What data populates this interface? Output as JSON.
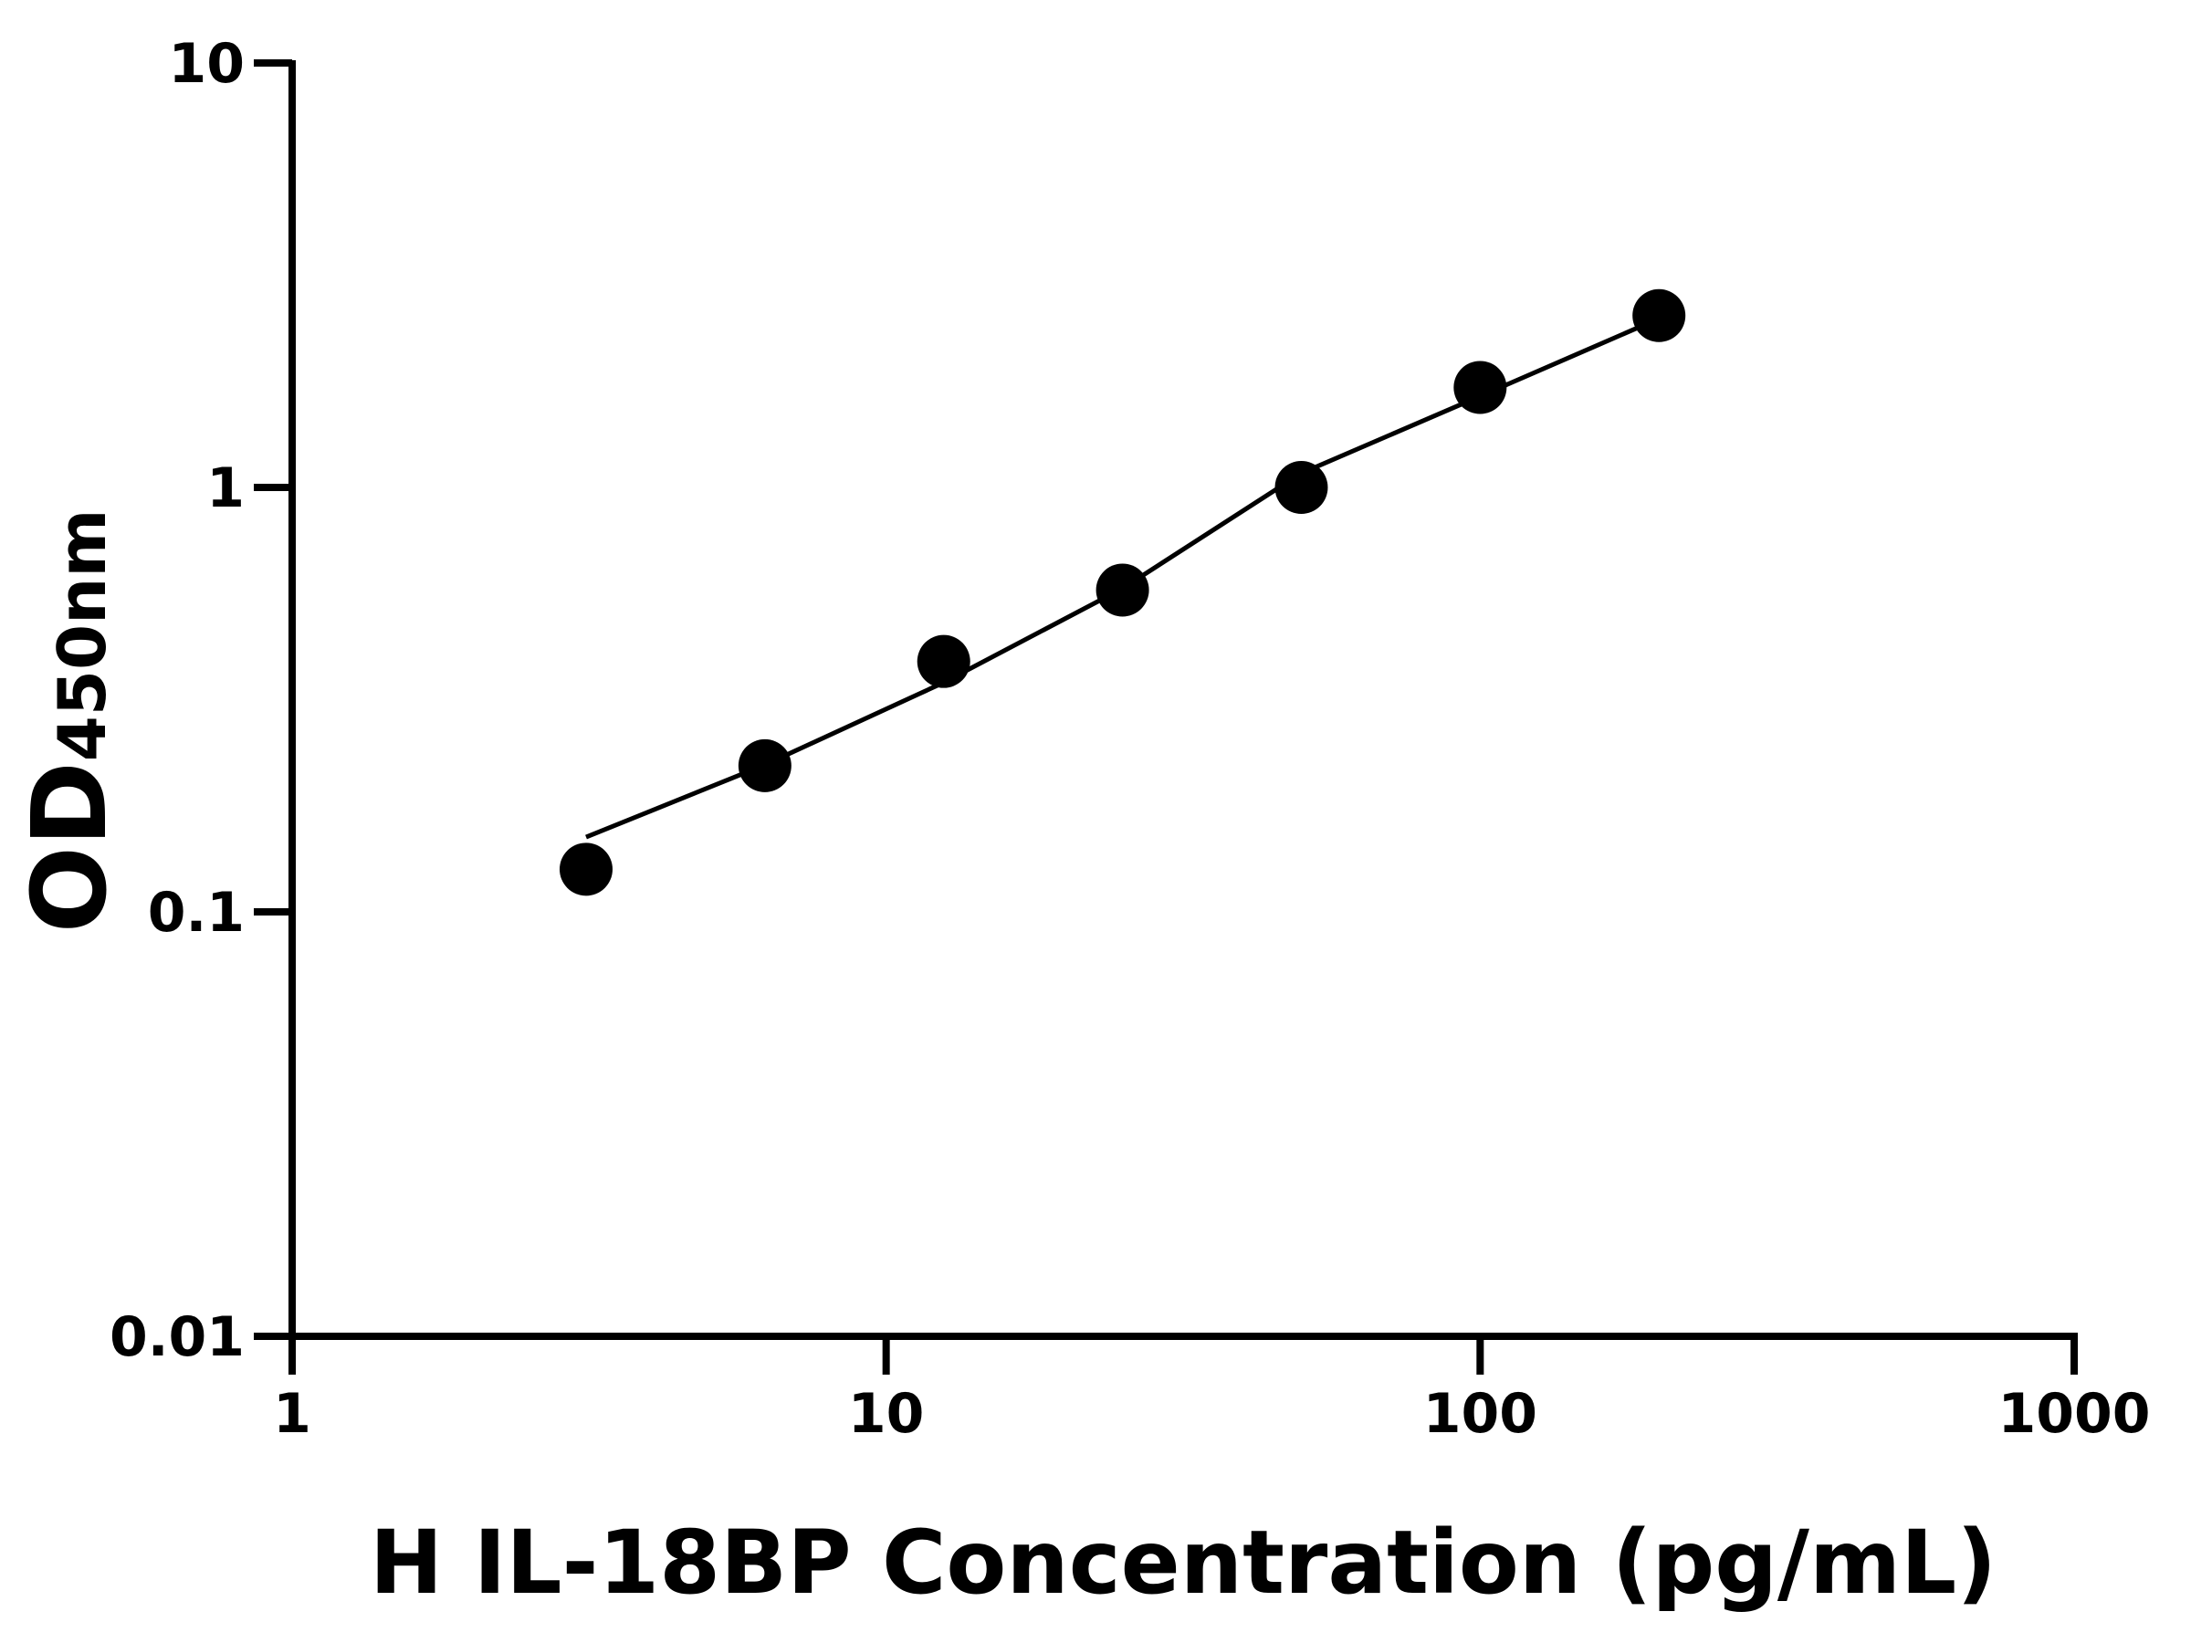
{
  "chart_data": {
    "type": "scatter",
    "xlabel": "H IL-18BP Concentration (pg/mL)",
    "ylabel": "OD",
    "ylabel_sub": "450nm",
    "xscale": "log",
    "yscale": "log",
    "xlim": [
      1,
      1000
    ],
    "xticks": [
      1,
      10,
      100,
      1000
    ],
    "ylim": [
      0.01,
      10
    ],
    "yticks": [
      0.01,
      0.1,
      1,
      10
    ],
    "series": [
      {
        "style": "marker",
        "color": "#000000",
        "x": [
          3.125,
          6.25,
          12.5,
          25,
          50,
          100,
          200
        ],
        "values": [
          0.126,
          0.221,
          0.389,
          0.573,
          1.0,
          1.72,
          2.54
        ]
      },
      {
        "style": "line",
        "color": "#000000",
        "x": [
          3.125,
          6.25,
          12.5,
          25,
          50,
          100,
          200
        ],
        "values": [
          0.15,
          0.222,
          0.347,
          0.578,
          1.08,
          1.64,
          2.5
        ]
      }
    ]
  }
}
